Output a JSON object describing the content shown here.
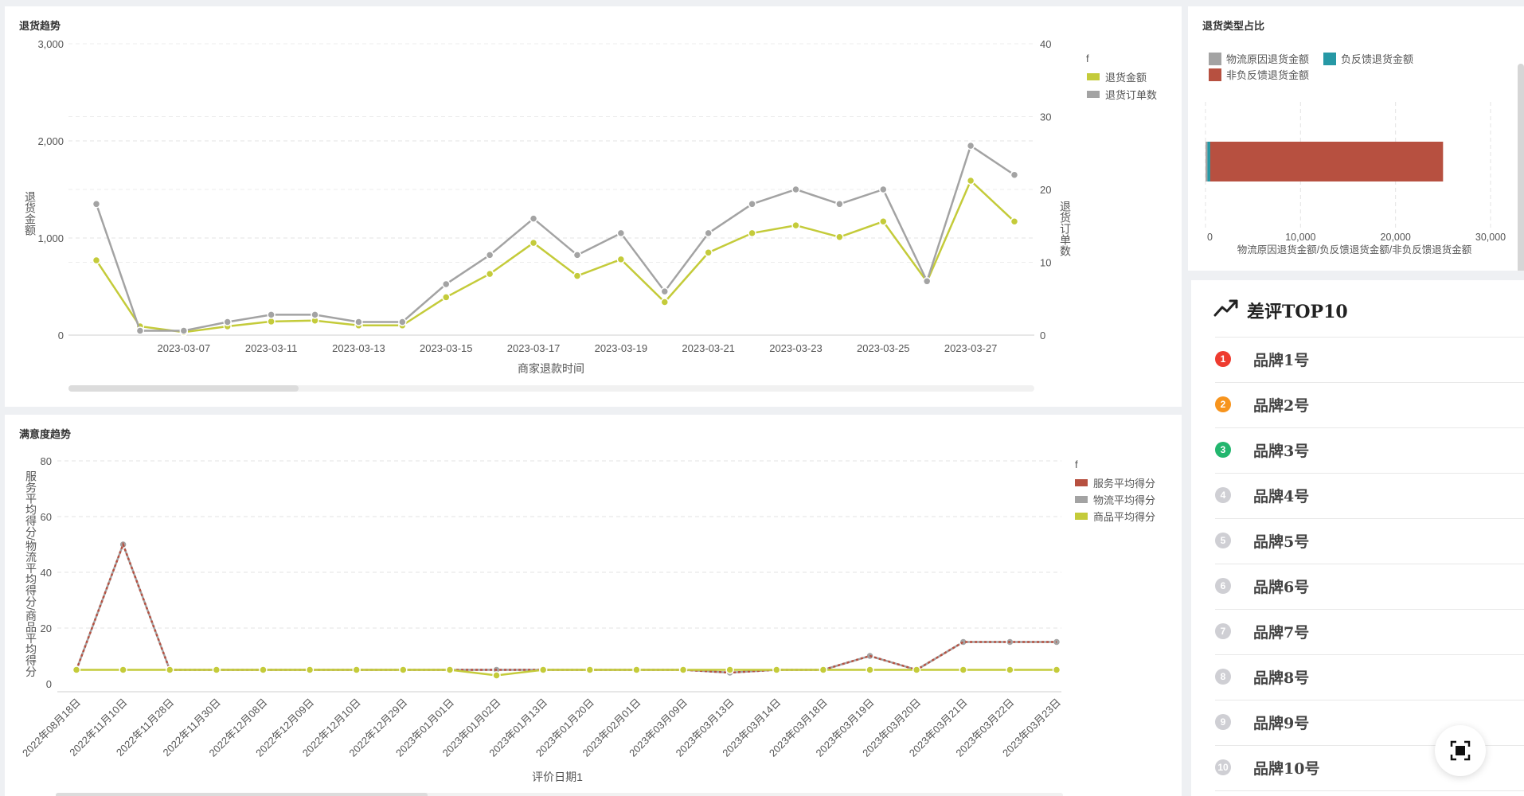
{
  "colors": {
    "yellow_green": "#c4cb3a",
    "gray": "#a3a3a3",
    "teal": "#2698a5",
    "red": "#b75040",
    "rank1": "#ee3b2f",
    "rank2": "#f7941d",
    "rank3": "#22b66e",
    "rank_other": "#cfcfd4"
  },
  "trend_panel": {
    "title": "退货趋势",
    "legend_title": "f",
    "legend": [
      "退货金额",
      "退货订单数"
    ],
    "y_left_label": "退货金额",
    "y_right_label": "退货订单数",
    "x_label": "商家退款时间"
  },
  "type_panel": {
    "title": "退货类型占比",
    "legend": [
      "物流原因退货金额",
      "负反馈退货金额",
      "非负反馈退货金额"
    ],
    "x_label": "物流原因退货金额/负反馈退货金额/非负反馈退货金额"
  },
  "satisfaction_panel": {
    "title": "满意度趋势",
    "legend_title": "f",
    "legend": [
      "服务平均得分",
      "物流平均得分",
      "商品平均得分"
    ],
    "y_label": "服务平均得分/物流平均得分/商品平均得分",
    "x_label": "评价日期1"
  },
  "top10": {
    "title": "差评TOP10",
    "items": [
      {
        "rank": "1",
        "name": "品牌1号"
      },
      {
        "rank": "2",
        "name": "品牌2号"
      },
      {
        "rank": "3",
        "name": "品牌3号"
      },
      {
        "rank": "4",
        "name": "品牌4号"
      },
      {
        "rank": "5",
        "name": "品牌5号"
      },
      {
        "rank": "6",
        "name": "品牌6号"
      },
      {
        "rank": "7",
        "name": "品牌7号"
      },
      {
        "rank": "8",
        "name": "品牌8号"
      },
      {
        "rank": "9",
        "name": "品牌9号"
      },
      {
        "rank": "10",
        "name": "品牌10号"
      }
    ]
  },
  "chart_data": [
    {
      "type": "line",
      "title": "退货趋势",
      "xlabel": "商家退款时间",
      "ylabel": "退货金额",
      "ylabel_right": "退货订单数",
      "ylim": [
        0,
        3000
      ],
      "ylim_right": [
        0,
        40
      ],
      "yticks": [
        "0",
        "1,000",
        "2,000",
        "3,000"
      ],
      "yticks_right": [
        "0",
        "10",
        "20",
        "30",
        "40"
      ],
      "x_tick_labels": [
        "2023-03-07",
        "2023-03-11",
        "2023-03-13",
        "2023-03-15",
        "2023-03-17",
        "2023-03-19",
        "2023-03-21",
        "2023-03-23",
        "2023-03-25",
        "2023-03-27"
      ],
      "x_tick_index": [
        2,
        4,
        6,
        8,
        10,
        12,
        14,
        16,
        18,
        20
      ],
      "grid": true,
      "legend_position": "top-right",
      "series": [
        {
          "name": "退货金额",
          "axis": "left",
          "color": "#c4cb3a",
          "values": [
            770,
            90,
            30,
            90,
            140,
            150,
            100,
            100,
            390,
            630,
            950,
            610,
            780,
            340,
            850,
            1050,
            1130,
            1010,
            1170,
            550,
            1590,
            1170
          ]
        },
        {
          "name": "退货订单数",
          "axis": "right",
          "color": "#a3a3a3",
          "values": [
            18,
            0.6,
            0.6,
            1.8,
            2.8,
            2.8,
            1.8,
            1.8,
            7,
            11,
            16,
            11,
            14,
            6,
            14,
            18,
            20,
            18,
            20,
            7.4,
            26,
            22
          ]
        }
      ]
    },
    {
      "type": "bar",
      "orientation": "horizontal",
      "stacked": true,
      "title": "退货类型占比",
      "xlabel": "物流原因退货金额/负反馈退货金额/非负反馈退货金额",
      "xlim": [
        0,
        30000
      ],
      "xticks": [
        "0",
        "10,000",
        "20,000",
        "30,000"
      ],
      "legend_position": "top-left",
      "series": [
        {
          "name": "物流原因退货金额",
          "color": "#a3a3a3",
          "values": [
            200
          ]
        },
        {
          "name": "负反馈退货金额",
          "color": "#2698a5",
          "values": [
            300
          ]
        },
        {
          "name": "非负反馈退货金额",
          "color": "#b75040",
          "values": [
            24500
          ]
        }
      ]
    },
    {
      "type": "line",
      "title": "满意度趋势",
      "xlabel": "评价日期1",
      "ylabel": "服务平均得分/物流平均得分/商品平均得分",
      "ylim": [
        0,
        80
      ],
      "yticks": [
        "0",
        "20",
        "40",
        "60",
        "80"
      ],
      "categories": [
        "2022年08月18日",
        "2022年11月10日",
        "2022年11月28日",
        "2022年11月30日",
        "2022年12月08日",
        "2022年12月09日",
        "2022年12月10日",
        "2022年12月29日",
        "2023年01月01日",
        "2023年01月02日",
        "2023年01月13日",
        "2023年01月20日",
        "2023年02月01日",
        "2023年03月09日",
        "2023年03月13日",
        "2023年03月14日",
        "2023年03月18日",
        "2023年03月19日",
        "2023年03月20日",
        "2023年03月21日",
        "2023年03月22日",
        "2023年03月23日"
      ],
      "grid": true,
      "legend_position": "top-right",
      "series": [
        {
          "name": "服务平均得分",
          "color": "#b75040",
          "dashed": true,
          "values": [
            5,
            50,
            5,
            5,
            5,
            5,
            5,
            5,
            5,
            5,
            5,
            5,
            5,
            5,
            4,
            5,
            5,
            10,
            5,
            15,
            15,
            15
          ]
        },
        {
          "name": "物流平均得分",
          "color": "#a3a3a3",
          "values": [
            5,
            50,
            5,
            5,
            5,
            5,
            5,
            5,
            5,
            5,
            5,
            5,
            5,
            5,
            4,
            5,
            5,
            10,
            5,
            15,
            15,
            15
          ]
        },
        {
          "name": "商品平均得分",
          "color": "#c4cb3a",
          "values": [
            5,
            5,
            5,
            5,
            5,
            5,
            5,
            5,
            5,
            3,
            5,
            5,
            5,
            5,
            5,
            5,
            5,
            5,
            5,
            5,
            5,
            5
          ]
        }
      ]
    }
  ]
}
